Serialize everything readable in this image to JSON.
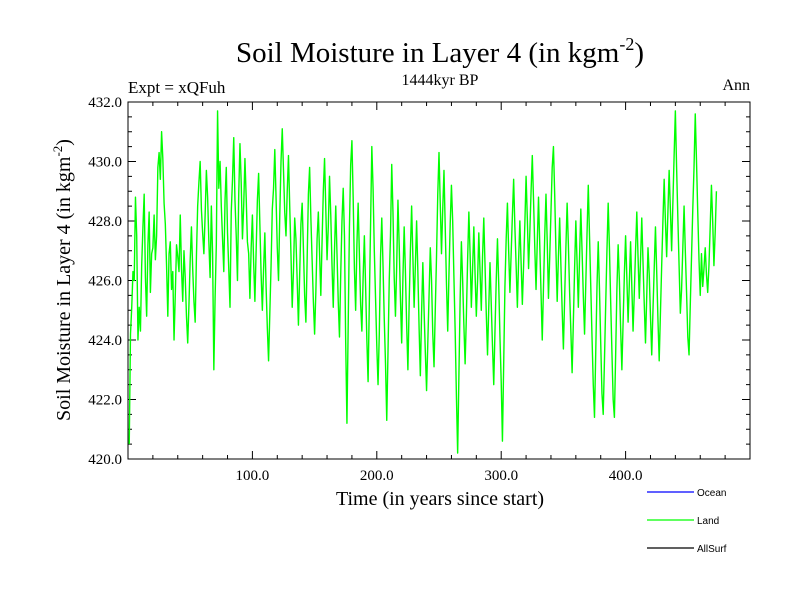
{
  "chart_data": {
    "type": "line",
    "title_main": "Soil Moisture in Layer 4 (in kgm",
    "title_sup": "-2",
    "title_close": ")",
    "subtitle_left": "Expt = xQFuh",
    "subtitle_center": "1444kyr BP",
    "subtitle_right": "Ann",
    "xlabel": "Time (in years since start)",
    "ylabel_main": "Soil Moisture in Layer 4 (in kgm",
    "ylabel_sup": "-2",
    "ylabel_close": ")",
    "xlim": [
      0,
      500
    ],
    "ylim": [
      420,
      432
    ],
    "x_ticks": [
      100,
      200,
      300,
      400
    ],
    "x_tick_labels": [
      "100.0",
      "200.0",
      "300.0",
      "400.0"
    ],
    "y_ticks": [
      420,
      422,
      424,
      426,
      428,
      430,
      432
    ],
    "y_tick_labels": [
      "420.0",
      "422.0",
      "424.0",
      "426.0",
      "428.0",
      "430.0",
      "432.0"
    ],
    "legend": [
      {
        "name": "Ocean",
        "color": "#0000ff"
      },
      {
        "name": "Land",
        "color": "#00ff00"
      },
      {
        "name": "AllSurf",
        "color": "#000000"
      }
    ],
    "series": [
      {
        "name": "Land",
        "color": "#00ff00",
        "x_start": 1,
        "x_step": 1,
        "values": [
          420.5,
          424.2,
          425.1,
          426.3,
          426.0,
          428.8,
          427.5,
          424.0,
          425.1,
          424.3,
          426.5,
          427.8,
          428.9,
          426.1,
          424.8,
          427.2,
          428.3,
          425.6,
          426.9,
          427.1,
          428.2,
          426.7,
          427.5,
          429.8,
          430.3,
          429.4,
          431.0,
          430.1,
          428.6,
          427.9,
          426.5,
          424.8,
          426.9,
          427.3,
          425.7,
          426.3,
          424.0,
          425.5,
          427.2,
          426.8,
          426.3,
          428.2,
          426.4,
          425.3,
          427.0,
          426.1,
          424.8,
          423.9,
          425.2,
          426.7,
          427.8,
          426.4,
          425.3,
          424.6,
          426.8,
          428.5,
          429.3,
          430.0,
          428.4,
          427.6,
          426.9,
          428.2,
          429.7,
          428.8,
          427.3,
          426.1,
          428.5,
          426.9,
          423.0,
          425.4,
          427.2,
          431.7,
          429.1,
          430.0,
          428.5,
          427.4,
          426.3,
          428.7,
          429.8,
          427.6,
          426.4,
          425.1,
          428.3,
          429.4,
          430.8,
          428.7,
          427.5,
          426.0,
          428.9,
          430.6,
          429.3,
          427.4,
          428.5,
          430.1,
          428.8,
          427.3,
          426.9,
          425.4,
          427.1,
          428.2,
          426.6,
          425.3,
          427.0,
          428.7,
          429.6,
          427.9,
          426.2,
          425.0,
          426.4,
          427.6,
          425.8,
          424.4,
          423.3,
          424.9,
          426.5,
          428.4,
          429.1,
          430.4,
          428.8,
          427.1,
          426.0,
          428.2,
          430.0,
          431.1,
          429.7,
          428.3,
          427.5,
          429.0,
          430.2,
          428.5,
          426.9,
          425.1,
          426.3,
          428.1,
          427.4,
          426.0,
          424.5,
          426.2,
          427.9,
          428.6,
          427.1,
          425.5,
          424.6,
          426.7,
          428.9,
          429.8,
          428.1,
          426.7,
          425.3,
          424.2,
          425.6,
          427.4,
          428.3,
          426.9,
          425.5,
          427.3,
          429.0,
          430.1,
          428.4,
          426.7,
          427.8,
          429.5,
          428.2,
          426.5,
          425.1,
          427.0,
          428.5,
          426.9,
          425.3,
          424.1,
          426.2,
          428.0,
          429.1,
          427.5,
          423.9,
          421.2,
          424.5,
          427.8,
          429.9,
          430.7,
          428.8,
          426.4,
          425.0,
          427.2,
          428.6,
          426.9,
          425.2,
          424.3,
          426.1,
          427.5,
          425.8,
          424.0,
          422.6,
          425.3,
          427.9,
          430.5,
          429.1,
          427.0,
          425.4,
          423.8,
          422.5,
          424.2,
          426.8,
          428.1,
          426.5,
          424.7,
          423.2,
          421.3,
          423.6,
          426.0,
          427.5,
          429.9,
          428.3,
          426.1,
          424.8,
          426.5,
          428.7,
          427.2,
          425.4,
          423.9,
          426.1,
          427.8,
          426.3,
          424.5,
          423.0,
          425.2,
          427.0,
          428.5,
          426.8,
          425.1,
          426.5,
          428.0,
          426.3,
          424.4,
          422.8,
          424.9,
          426.6,
          425.0,
          423.6,
          422.3,
          423.9,
          425.5,
          427.1,
          426.0,
          424.2,
          423.1,
          425.0,
          426.8,
          428.9,
          430.3,
          428.6,
          426.9,
          428.4,
          429.7,
          427.8,
          425.9,
          424.3,
          426.2,
          427.9,
          429.2,
          428.0,
          426.1,
          424.3,
          422.1,
          420.2,
          422.8,
          425.4,
          427.3,
          426.0,
          424.5,
          423.2,
          424.8,
          426.7,
          428.3,
          426.9,
          425.1,
          426.4,
          427.8,
          426.2,
          424.8,
          426.0,
          427.6,
          426.3,
          425.0,
          426.8,
          428.1,
          426.5,
          424.9,
          423.5,
          425.1,
          426.6,
          425.2,
          423.8,
          422.5,
          424.3,
          426.0,
          427.4,
          425.9,
          424.1,
          422.6,
          420.6,
          423.2,
          425.8,
          427.4,
          428.6,
          427.0,
          425.6,
          426.9,
          428.2,
          429.4,
          427.8,
          426.5,
          425.1,
          426.7,
          428.0,
          426.6,
          425.2,
          426.5,
          427.9,
          429.5,
          428.1,
          426.4,
          427.6,
          429.0,
          430.2,
          428.7,
          427.1,
          425.7,
          427.3,
          428.8,
          427.2,
          425.6,
          424.0,
          425.8,
          427.5,
          428.9,
          427.3,
          425.4,
          426.8,
          428.3,
          429.8,
          430.5,
          428.9,
          427.0,
          425.3,
          426.8,
          428.1,
          426.5,
          425.0,
          423.7,
          425.4,
          427.1,
          428.6,
          427.2,
          425.6,
          424.3,
          422.9,
          424.6,
          426.4,
          428.0,
          426.6,
          425.1,
          426.8,
          428.4,
          427.0,
          425.5,
          424.2,
          425.9,
          427.6,
          429.2,
          427.5,
          425.8,
          424.1,
          422.5,
          421.4,
          423.6,
          425.8,
          427.3,
          425.7,
          423.9,
          422.2,
          421.5,
          423.3,
          425.2,
          427.0,
          428.6,
          427.1,
          425.3,
          423.6,
          422.0,
          421.4,
          423.5,
          425.7,
          427.2,
          426.0,
          424.4,
          423.0,
          424.6,
          426.2,
          427.5,
          426.1,
          424.6,
          425.9,
          427.3,
          425.8,
          424.3,
          425.6,
          427.0,
          428.3,
          426.8,
          425.4,
          426.7,
          428.1,
          426.6,
          425.2,
          423.9,
          425.5,
          427.1,
          426.2,
          424.8,
          423.5,
          425.0,
          426.4,
          427.8,
          426.3,
          424.7,
          423.3,
          424.9,
          426.5,
          428.0,
          429.4,
          428.0,
          426.8,
          428.3,
          429.7,
          428.4,
          427.0,
          428.6,
          430.2,
          431.7,
          429.8,
          428.1,
          426.5,
          424.9,
          425.7,
          427.1,
          428.5,
          427.0,
          425.6,
          424.1,
          423.5,
          425.2,
          426.8,
          428.4,
          429.8,
          431.6,
          430.0,
          428.3,
          426.7,
          425.5,
          426.9,
          425.8,
          426.4,
          427.1,
          426.2,
          425.6,
          426.5,
          427.8,
          429.2,
          428.0,
          426.5,
          427.6,
          429.0
        ]
      }
    ]
  }
}
